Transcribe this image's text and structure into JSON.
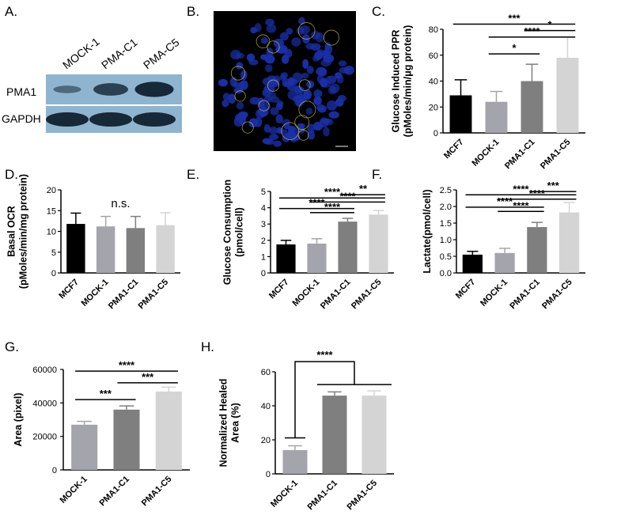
{
  "panels": {
    "A": "A.",
    "B": "B.",
    "C": "C.",
    "D": "D.",
    "E": "E.",
    "F": "F.",
    "G": "G.",
    "H": "H."
  },
  "western_blot": {
    "lanes": [
      "MOCK-1",
      "PMA-C1",
      "PMA-C5"
    ],
    "rows": [
      "PMA1",
      "GAPDH"
    ],
    "band_intensity": {
      "PMA1": [
        0.25,
        0.7,
        0.95
      ],
      "GAPDH": [
        0.95,
        0.95,
        0.95
      ]
    },
    "colors": {
      "blot_bg": "#8fb4cf",
      "band": "#0d1c2a"
    }
  },
  "microscopy": {
    "colors": {
      "background": "#000000",
      "nuclei": "#1a2fa8",
      "membrane": "#e6d24a"
    }
  },
  "colors": {
    "MCF7": "#000000",
    "MOCK-1": "#a4a4ac",
    "PMA1-C1": "#7f7f7f",
    "PMA1-C5": "#d4d4d4"
  },
  "chart_data": [
    {
      "id": "C",
      "type": "bar",
      "ylabel_lines": [
        "Glucose Induced PPR",
        "(pMoles/min/μg protein)"
      ],
      "categories": [
        "MCF7",
        "MOCK-1",
        "PMA1-C1",
        "PMA1-C5"
      ],
      "values": [
        29,
        24,
        40,
        58
      ],
      "errors": [
        12,
        8,
        13,
        16
      ],
      "ylim": [
        0,
        80
      ],
      "yticks": [
        0,
        20,
        40,
        60,
        80
      ],
      "significance": [
        {
          "from": 0,
          "to": 3,
          "label": "***",
          "y": 84
        },
        {
          "from": 2,
          "to": 3,
          "label": "*",
          "y": 79
        },
        {
          "from": 1,
          "to": 3,
          "label": "****",
          "y": 74
        },
        {
          "from": 1,
          "to": 2,
          "label": "*",
          "y": 61
        }
      ]
    },
    {
      "id": "D",
      "type": "bar",
      "ylabel_lines": [
        "Basal OCR",
        "(pMoles/min/mg protein)"
      ],
      "categories": [
        "MCF7",
        "MOCK-1",
        "PMA1-C1",
        "PMA1-C5"
      ],
      "values": [
        11.8,
        11.2,
        10.8,
        11.5
      ],
      "errors": [
        2.6,
        2.4,
        2.8,
        3.0
      ],
      "ylim": [
        0,
        20
      ],
      "yticks": [
        0,
        5,
        10,
        15,
        20
      ],
      "annotation": "n.s.",
      "significance": []
    },
    {
      "id": "E",
      "type": "bar",
      "ylabel_lines": [
        "Glucose Consumption",
        "(pmol/cell)"
      ],
      "categories": [
        "MCF7",
        "MOCK-1",
        "PMA1-C1",
        "PMA1-C5"
      ],
      "values": [
        1.75,
        1.8,
        3.15,
        3.58
      ],
      "errors": [
        0.25,
        0.3,
        0.2,
        0.25
      ],
      "ylim": [
        0,
        5
      ],
      "yticks": [
        0,
        1,
        2,
        3,
        4,
        5
      ],
      "significance": [
        {
          "from": 2,
          "to": 3,
          "label": "**",
          "y": 4.8
        },
        {
          "from": 0,
          "to": 3,
          "label": "****",
          "y": 4.6
        },
        {
          "from": 1,
          "to": 3,
          "label": "****",
          "y": 4.35
        },
        {
          "from": 0,
          "to": 2,
          "label": "****",
          "y": 3.95
        },
        {
          "from": 1,
          "to": 2,
          "label": "****",
          "y": 3.7
        }
      ]
    },
    {
      "id": "F",
      "type": "bar",
      "ylabel_lines": [
        "Lactate(pmol/cell)"
      ],
      "categories": [
        "MCF7",
        "MOCK-1",
        "PMA1-C1",
        "PMA1-C5"
      ],
      "values": [
        0.55,
        0.6,
        1.38,
        1.82
      ],
      "errors": [
        0.1,
        0.14,
        0.14,
        0.3
      ],
      "ylim": [
        0,
        2.5
      ],
      "yticks": [
        0,
        0.5,
        1.0,
        1.5,
        2.0,
        2.5
      ],
      "ytick_labels": [
        "0.0",
        "0.5",
        "1.0",
        "1.5",
        "2.0",
        "2.5"
      ],
      "significance": [
        {
          "from": 2,
          "to": 3,
          "label": "***",
          "y": 2.45
        },
        {
          "from": 0,
          "to": 3,
          "label": "****",
          "y": 2.35
        },
        {
          "from": 1,
          "to": 3,
          "label": "****",
          "y": 2.22
        },
        {
          "from": 0,
          "to": 2,
          "label": "****",
          "y": 1.98
        },
        {
          "from": 1,
          "to": 2,
          "label": "****",
          "y": 1.85
        }
      ]
    },
    {
      "id": "G",
      "type": "bar",
      "ylabel_lines": [
        "Area  (pixel)"
      ],
      "categories": [
        "MOCK-1",
        "PMA1-C1",
        "PMA1-C5"
      ],
      "values": [
        27000,
        36000,
        46800
      ],
      "errors": [
        2000,
        2200,
        2600
      ],
      "ylim": [
        0,
        60000
      ],
      "yticks": [
        0,
        20000,
        40000,
        60000
      ],
      "significance": [
        {
          "from": 0,
          "to": 2,
          "label": "****",
          "y": 59000
        },
        {
          "from": 1,
          "to": 2,
          "label": "***",
          "y": 52000
        },
        {
          "from": 0,
          "to": 1,
          "label": "***",
          "y": 42000
        }
      ]
    },
    {
      "id": "H",
      "type": "bar",
      "ylabel_lines": [
        "Normalized Healed",
        "Area (%)"
      ],
      "categories": [
        "MOCK-1",
        "PMA1-C1",
        "PMA1-C5"
      ],
      "values": [
        14,
        46,
        46
      ],
      "errors": [
        2.5,
        2.2,
        2.8
      ],
      "ylim": [
        0,
        60
      ],
      "yticks": [
        0,
        20,
        40,
        60
      ],
      "significance": [
        {
          "type": "bracket",
          "from": 0,
          "to": [
            1,
            2
          ],
          "label": "****",
          "y": 66
        }
      ]
    }
  ]
}
